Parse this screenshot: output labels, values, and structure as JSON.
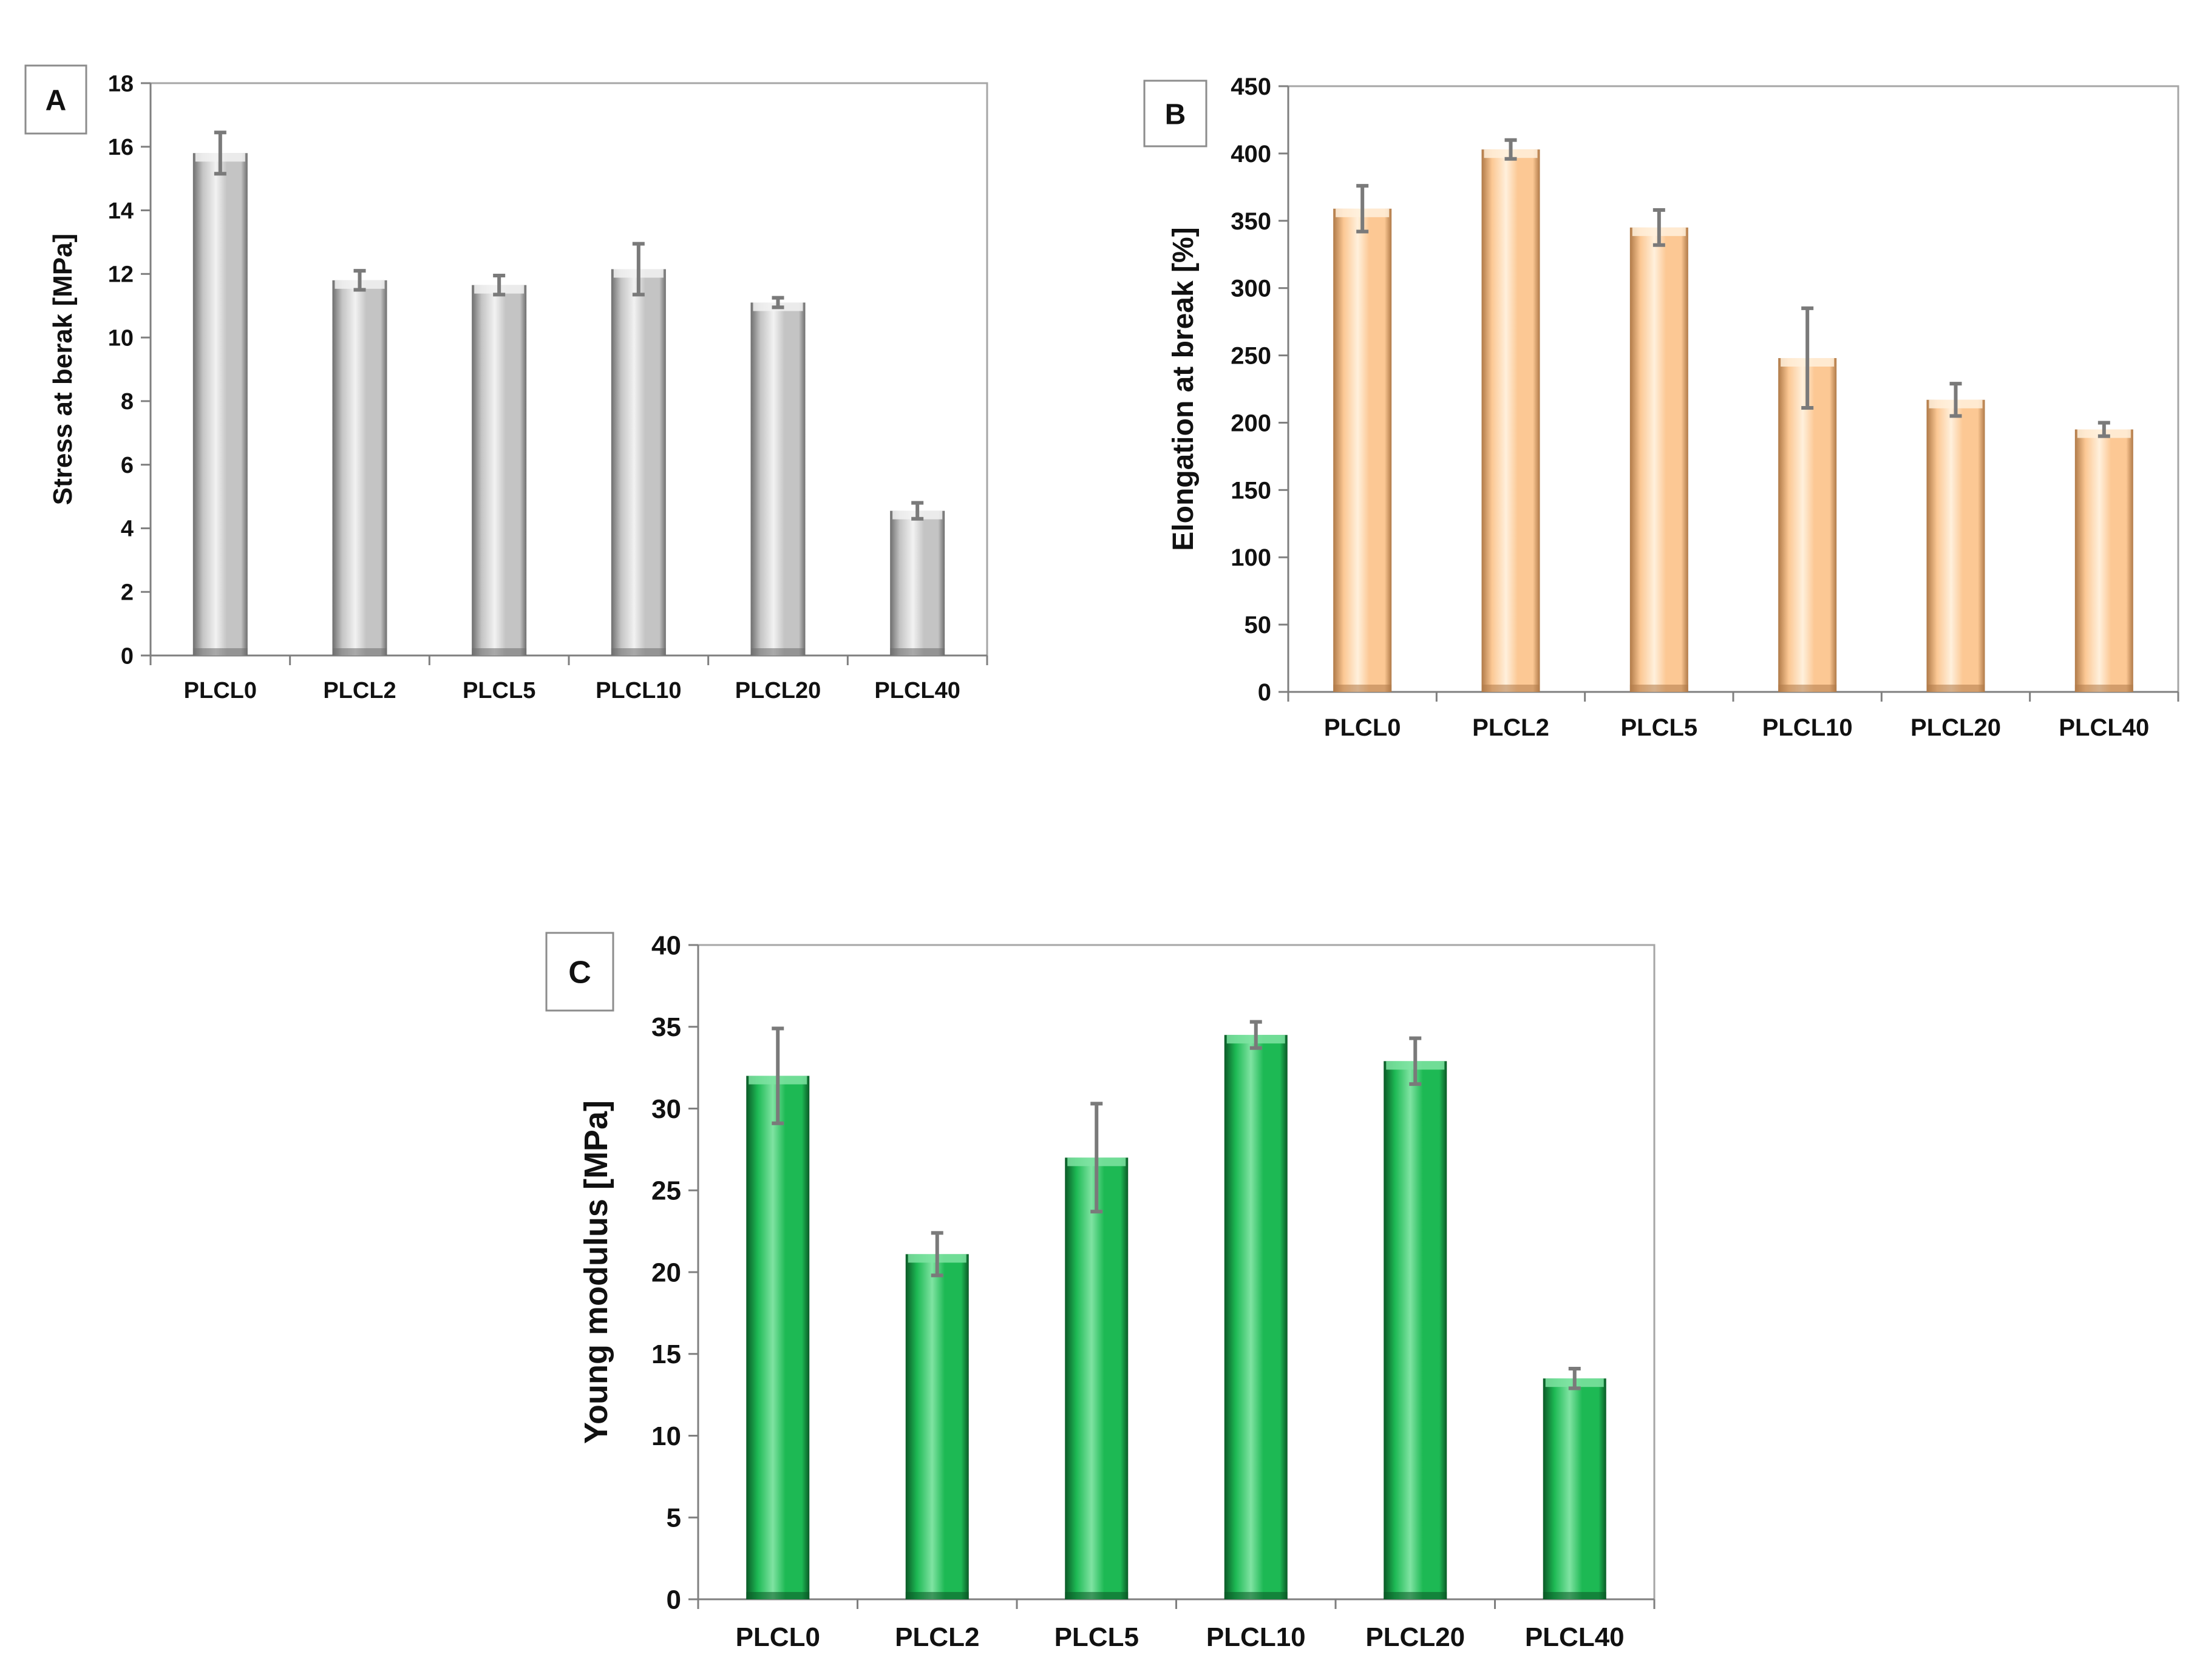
{
  "chart_data": [
    {
      "id": "A",
      "type": "bar",
      "panel_label": "A",
      "categories": [
        "PLCL0",
        "PLCL2",
        "PLCL5",
        "PLCL10",
        "PLCL20",
        "PLCL40"
      ],
      "values": [
        15.8,
        11.8,
        11.65,
        12.15,
        11.1,
        4.55
      ],
      "errors": [
        0.65,
        0.3,
        0.3,
        0.8,
        0.15,
        0.25
      ],
      "ylabel": "Stress at berak [MPa]",
      "xlabel": "",
      "ylim": [
        0,
        18
      ],
      "yticks": [
        0,
        2,
        4,
        6,
        8,
        10,
        12,
        14,
        16,
        18
      ],
      "bar_color": "#c4c4c4",
      "bar_dark": "#6e6e6e",
      "bar_light": "#f2f2f2"
    },
    {
      "id": "B",
      "type": "bar",
      "panel_label": "B",
      "categories": [
        "PLCL0",
        "PLCL2",
        "PLCL5",
        "PLCL10",
        "PLCL20",
        "PLCL40"
      ],
      "values": [
        359,
        403,
        345,
        248,
        217,
        195
      ],
      "errors": [
        17,
        7,
        13,
        37,
        12,
        5
      ],
      "ylabel": "Elongation at break [%]",
      "xlabel": "",
      "ylim": [
        0,
        450
      ],
      "yticks": [
        0,
        50,
        100,
        150,
        200,
        250,
        300,
        350,
        400,
        450
      ],
      "bar_color": "#fcc894",
      "bar_dark": "#b07a48",
      "bar_light": "#fff0dc"
    },
    {
      "id": "C",
      "type": "bar",
      "panel_label": "C",
      "categories": [
        "PLCL0",
        "PLCL2",
        "PLCL5",
        "PLCL10",
        "PLCL20",
        "PLCL40"
      ],
      "values": [
        32.0,
        21.1,
        27.0,
        34.5,
        32.9,
        13.5
      ],
      "errors": [
        2.9,
        1.3,
        3.3,
        0.8,
        1.4,
        0.6
      ],
      "ylabel": "Young modulus [MPa]",
      "xlabel": "",
      "ylim": [
        0,
        40
      ],
      "yticks": [
        0,
        5,
        10,
        15,
        20,
        25,
        30,
        35,
        40
      ],
      "bar_color": "#1db954",
      "bar_dark": "#0b5a27",
      "bar_light": "#7fe3a2"
    }
  ]
}
